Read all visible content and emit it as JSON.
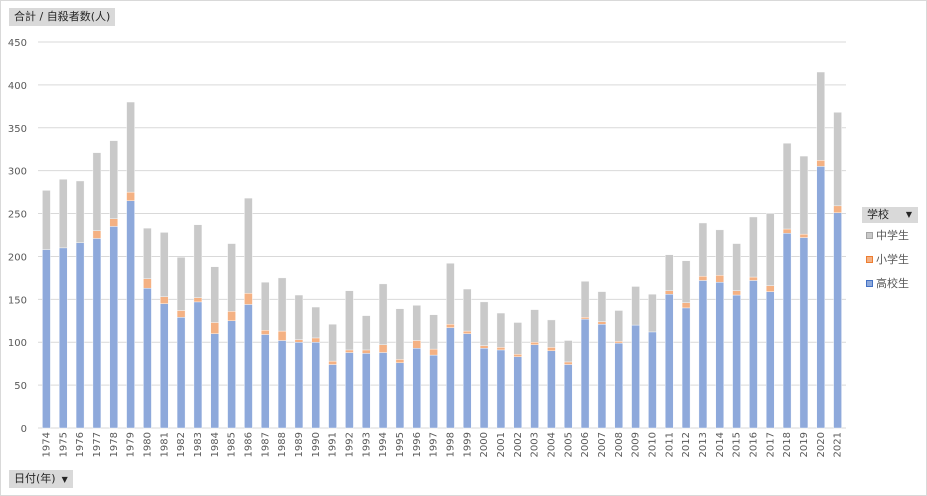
{
  "y_field_button": "合計 / 自殺者数(人)",
  "x_field_button": "日付(年)",
  "legend_field_button": "学校",
  "colors": {
    "高校生": "#8ea9db",
    "小学生": "#f4b183",
    "中学生": "#c9c9c9"
  },
  "chart_data": {
    "type": "bar",
    "stacked": true,
    "categories": [
      "1974",
      "1975",
      "1976",
      "1977",
      "1978",
      "1979",
      "1980",
      "1981",
      "1982",
      "1983",
      "1984",
      "1985",
      "1986",
      "1987",
      "1988",
      "1989",
      "1990",
      "1991",
      "1992",
      "1993",
      "1994",
      "1995",
      "1996",
      "1997",
      "1998",
      "1999",
      "2000",
      "2001",
      "2002",
      "2003",
      "2004",
      "2005",
      "2006",
      "2007",
      "2008",
      "2009",
      "2010",
      "2011",
      "2012",
      "2013",
      "2014",
      "2015",
      "2016",
      "2017",
      "2018",
      "2019",
      "2020",
      "2021"
    ],
    "series": [
      {
        "name": "高校生",
        "values": [
          208,
          210,
          216,
          221,
          235,
          265,
          163,
          145,
          129,
          147,
          110,
          125,
          144,
          109,
          102,
          100,
          100,
          74,
          88,
          87,
          88,
          76,
          93,
          85,
          117,
          110,
          93,
          91,
          83,
          97,
          90,
          74,
          127,
          121,
          99,
          120,
          112,
          156,
          140,
          172,
          170,
          155,
          172,
          159,
          227,
          222,
          305,
          251
        ]
      },
      {
        "name": "小学生",
        "values": [
          0,
          0,
          0,
          9,
          9,
          10,
          11,
          8,
          8,
          5,
          13,
          11,
          13,
          5,
          11,
          3,
          5,
          4,
          3,
          4,
          9,
          4,
          9,
          7,
          4,
          3,
          3,
          3,
          3,
          3,
          4,
          3,
          2,
          3,
          2,
          0,
          0,
          4,
          6,
          5,
          8,
          5,
          4,
          7,
          5,
          4,
          7,
          8
        ]
      },
      {
        "name": "中学生",
        "values": [
          69,
          80,
          72,
          91,
          91,
          105,
          59,
          75,
          62,
          85,
          65,
          79,
          111,
          56,
          62,
          52,
          36,
          43,
          69,
          40,
          71,
          59,
          41,
          40,
          71,
          49,
          51,
          40,
          37,
          38,
          32,
          25,
          42,
          35,
          36,
          45,
          44,
          42,
          49,
          62,
          53,
          55,
          70,
          84,
          100,
          91,
          103,
          109
        ]
      }
    ],
    "legend_order": [
      "中学生",
      "小学生",
      "高校生"
    ],
    "ylim": [
      0,
      450
    ],
    "yticks": [
      0,
      50,
      100,
      150,
      200,
      250,
      300,
      350,
      400,
      450
    ],
    "grid": true,
    "legend_position": "right"
  }
}
